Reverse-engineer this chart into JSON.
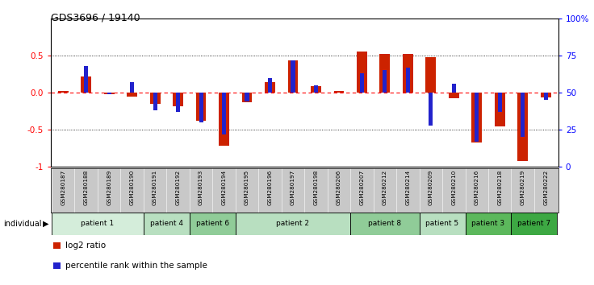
{
  "title": "GDS3696 / 19140",
  "samples": [
    "GSM280187",
    "GSM280188",
    "GSM280189",
    "GSM280190",
    "GSM280191",
    "GSM280192",
    "GSM280193",
    "GSM280194",
    "GSM280195",
    "GSM280196",
    "GSM280197",
    "GSM280198",
    "GSM280206",
    "GSM280207",
    "GSM280212",
    "GSM280214",
    "GSM280209",
    "GSM280210",
    "GSM280216",
    "GSM280218",
    "GSM280219",
    "GSM280222"
  ],
  "log2_ratio": [
    0.02,
    0.22,
    -0.02,
    -0.05,
    -0.15,
    -0.18,
    -0.38,
    -0.72,
    -0.13,
    0.14,
    0.43,
    0.09,
    0.02,
    0.55,
    0.52,
    0.52,
    0.48,
    -0.08,
    -0.67,
    -0.46,
    -0.92,
    -0.07
  ],
  "percentile_rank": [
    50,
    68,
    49,
    57,
    38,
    37,
    30,
    22,
    44,
    60,
    72,
    55,
    50,
    63,
    65,
    67,
    28,
    56,
    17,
    37,
    20,
    45
  ],
  "patients": [
    {
      "label": "patient 1",
      "start": 0,
      "end": 4,
      "color": "#d4edda"
    },
    {
      "label": "patient 4",
      "start": 4,
      "end": 6,
      "color": "#b8dfc0"
    },
    {
      "label": "patient 6",
      "start": 6,
      "end": 8,
      "color": "#90cc98"
    },
    {
      "label": "patient 2",
      "start": 8,
      "end": 13,
      "color": "#b8dfc0"
    },
    {
      "label": "patient 8",
      "start": 13,
      "end": 16,
      "color": "#90cc98"
    },
    {
      "label": "patient 5",
      "start": 16,
      "end": 18,
      "color": "#b8dfc0"
    },
    {
      "label": "patient 3",
      "start": 18,
      "end": 20,
      "color": "#5cb85c"
    },
    {
      "label": "patient 7",
      "start": 20,
      "end": 22,
      "color": "#3da843"
    }
  ],
  "bar_color_red": "#cc2200",
  "bar_color_blue": "#2222cc",
  "bg_color": "#ffffff",
  "plot_bg": "#ffffff",
  "ylim": [
    -1.0,
    1.0
  ],
  "y2lim": [
    0,
    100
  ],
  "yticks": [
    -1.0,
    -0.5,
    0.0,
    0.5
  ],
  "y2ticks": [
    0,
    25,
    50,
    75,
    100
  ],
  "hlines_dotted": [
    -0.5,
    0.5
  ],
  "hline_zero": 0.0,
  "red_bar_width": 0.45,
  "blue_bar_width": 0.18
}
